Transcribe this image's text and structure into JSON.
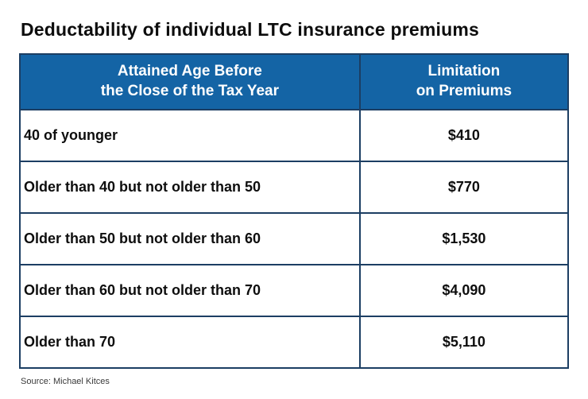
{
  "title": "Deductability of individual LTC insurance premiums",
  "source": "Source: Michael Kitces",
  "colors": {
    "header_bg": "#1464a5",
    "header_text": "#ffffff",
    "border": "#1c3e63",
    "body_text": "#0e0e0e",
    "background": "#ffffff"
  },
  "table": {
    "header": {
      "age": {
        "line1": "Attained Age Before",
        "line2": "the Close of the Tax Year"
      },
      "premium": {
        "line1": "Limitation",
        "line2": "on Premiums"
      }
    }
  },
  "chart_data": {
    "type": "table",
    "title": "Deductability of individual LTC insurance premiums",
    "columns": [
      "Attained Age Before the Close of the Tax Year",
      "Limitation on Premiums"
    ],
    "rows": [
      [
        "40 of younger",
        "$410"
      ],
      [
        "Older than 40 but not older than 50",
        "$770"
      ],
      [
        "Older than 50 but not older than 60",
        "$1,530"
      ],
      [
        "Older than 60 but not older than 70",
        "$4,090"
      ],
      [
        "Older than 70",
        "$5,110"
      ]
    ],
    "source": "Source: Michael Kitces",
    "layout": {
      "header_background": "#1464a5",
      "grid": "on",
      "left_column_align": "left",
      "right_column_align": "center"
    }
  }
}
